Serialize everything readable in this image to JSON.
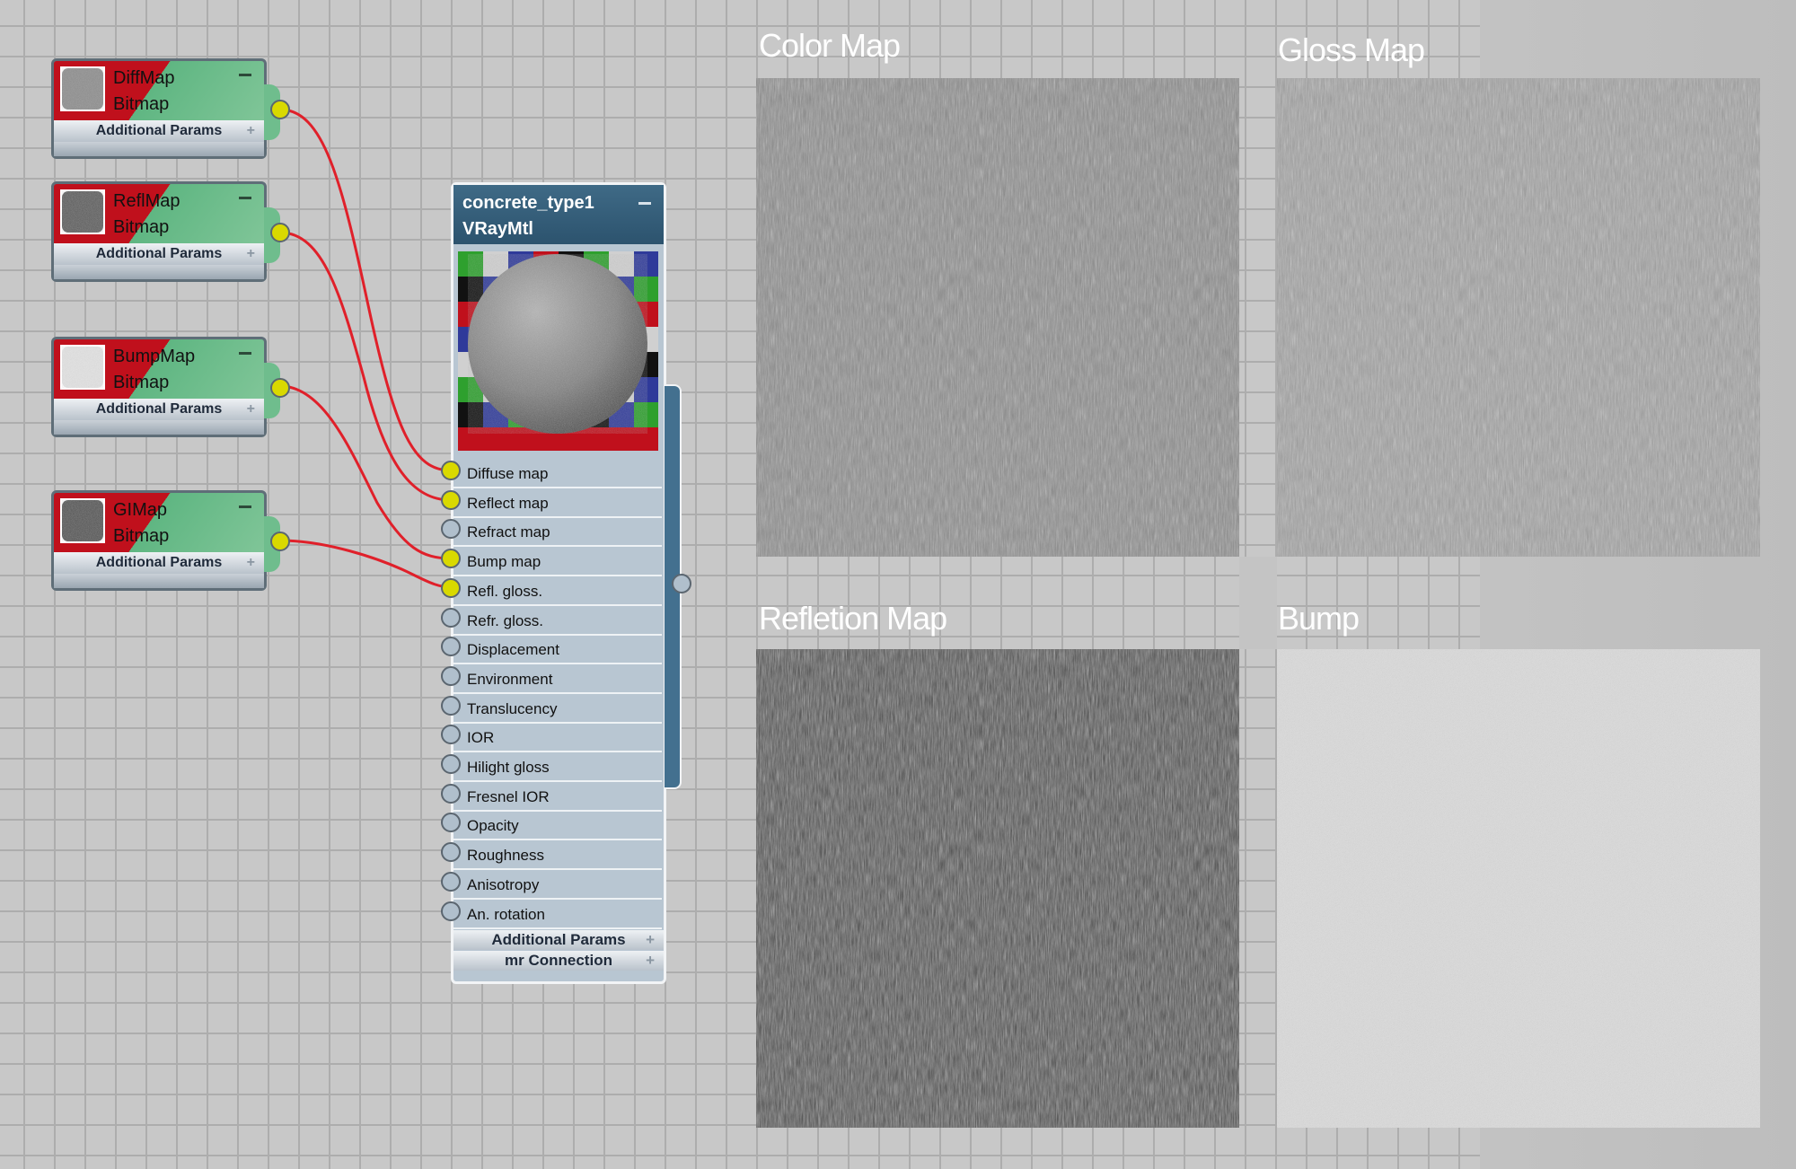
{
  "map_nodes": [
    {
      "name": "DiffMap",
      "type": "Bitmap",
      "params": "Additional Params",
      "thumb": "#8c8c8c"
    },
    {
      "name": "ReflMap",
      "type": "Bitmap",
      "params": "Additional Params",
      "thumb": "#555555"
    },
    {
      "name": "BumpMap",
      "type": "Bitmap",
      "params": "Additional Params",
      "thumb": "#e4e4e4"
    },
    {
      "name": "GIMap",
      "type": "Bitmap",
      "params": "Additional Params",
      "thumb": "#4a4a4a"
    }
  ],
  "material": {
    "name": "concrete_type1",
    "type": "VRayMtl",
    "slots": [
      {
        "label": "Diffuse map",
        "connected": true
      },
      {
        "label": "Reflect map",
        "connected": true
      },
      {
        "label": "Refract map",
        "connected": false
      },
      {
        "label": "Bump map",
        "connected": true
      },
      {
        "label": "Refl. gloss.",
        "connected": true
      },
      {
        "label": "Refr. gloss.",
        "connected": false
      },
      {
        "label": "Displacement",
        "connected": false
      },
      {
        "label": "Environment",
        "connected": false
      },
      {
        "label": "Translucency",
        "connected": false
      },
      {
        "label": "IOR",
        "connected": false
      },
      {
        "label": "Hilight gloss",
        "connected": false
      },
      {
        "label": "Fresnel IOR",
        "connected": false
      },
      {
        "label": "Opacity",
        "connected": false
      },
      {
        "label": "Roughness",
        "connected": false
      },
      {
        "label": "Anisotropy",
        "connected": false
      },
      {
        "label": "An. rotation",
        "connected": false
      }
    ],
    "additional_params": "Additional Params",
    "mr_connection": "mr Connection",
    "plus": "+"
  },
  "previews": [
    {
      "label": "Color Map",
      "tone": "#8e8e8e"
    },
    {
      "label": "Gloss Map",
      "tone": "#a4a4a4"
    },
    {
      "label": "Refletion Map",
      "tone": "#4c4c4c"
    },
    {
      "label": "Bump",
      "tone": "#dcdcdc"
    }
  ],
  "colors": {
    "wire": "#e0202a",
    "socket_connected": "#d9d900",
    "header": "#345c78",
    "map_node_green": "#6fbd8d",
    "map_node_red": "#c0101c"
  }
}
